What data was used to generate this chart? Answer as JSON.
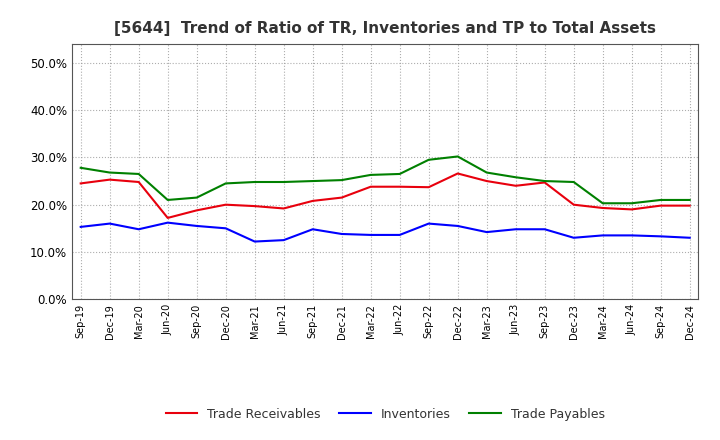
{
  "title": "[5644]  Trend of Ratio of TR, Inventories and TP to Total Assets",
  "x_labels": [
    "Sep-19",
    "Dec-19",
    "Mar-20",
    "Jun-20",
    "Sep-20",
    "Dec-20",
    "Mar-21",
    "Jun-21",
    "Sep-21",
    "Dec-21",
    "Mar-22",
    "Jun-22",
    "Sep-22",
    "Dec-22",
    "Mar-23",
    "Jun-23",
    "Sep-23",
    "Dec-23",
    "Mar-24",
    "Jun-24",
    "Sep-24",
    "Dec-24"
  ],
  "trade_receivables": [
    0.245,
    0.253,
    0.248,
    0.172,
    0.188,
    0.2,
    0.197,
    0.192,
    0.208,
    0.215,
    0.238,
    0.238,
    0.237,
    0.266,
    0.25,
    0.24,
    0.247,
    0.2,
    0.193,
    0.19,
    0.198,
    0.198
  ],
  "inventories": [
    0.153,
    0.16,
    0.148,
    0.162,
    0.155,
    0.15,
    0.122,
    0.125,
    0.148,
    0.138,
    0.136,
    0.136,
    0.16,
    0.155,
    0.142,
    0.148,
    0.148,
    0.13,
    0.135,
    0.135,
    0.133,
    0.13
  ],
  "trade_payables": [
    0.278,
    0.268,
    0.265,
    0.21,
    0.215,
    0.245,
    0.248,
    0.248,
    0.25,
    0.252,
    0.263,
    0.265,
    0.295,
    0.302,
    0.268,
    0.258,
    0.25,
    0.248,
    0.203,
    0.203,
    0.21,
    0.21
  ],
  "tr_color": "#e8000d",
  "inv_color": "#0000ff",
  "tp_color": "#008000",
  "ylim": [
    0.0,
    0.54
  ],
  "yticks": [
    0.0,
    0.1,
    0.2,
    0.3,
    0.4,
    0.5
  ],
  "background_color": "#ffffff",
  "plot_bg_color": "#ffffff",
  "grid_color": "#999999",
  "title_color": "#333333",
  "legend_labels": [
    "Trade Receivables",
    "Inventories",
    "Trade Payables"
  ]
}
